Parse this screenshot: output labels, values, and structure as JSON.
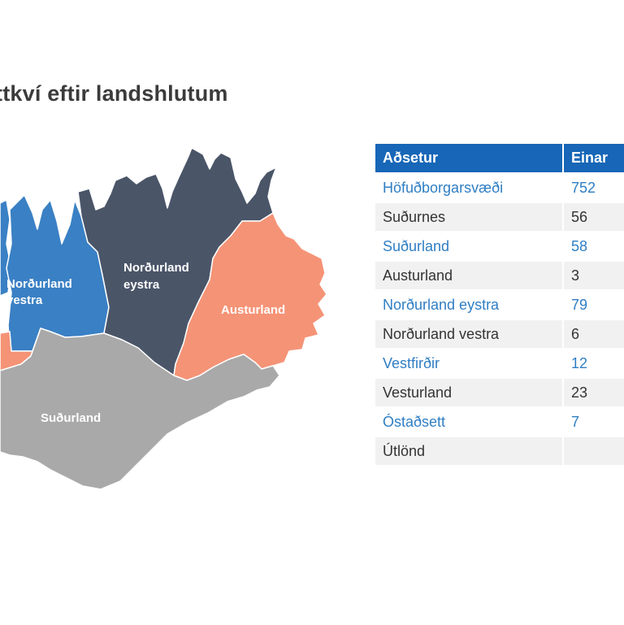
{
  "title": "ttkví eftir landshlutum",
  "colors": {
    "blue": "#3a80c4",
    "dark": "#4a5568",
    "orange": "#f59376",
    "gray": "#a9a9a9",
    "header": "#1766b7",
    "link": "#2f7ec4"
  },
  "map": {
    "regions": [
      {
        "id": "vestfirdir",
        "label": "",
        "color": "blue"
      },
      {
        "id": "nordurland-vestra",
        "label": [
          "Norðurland",
          "vestra"
        ],
        "color": "blue"
      },
      {
        "id": "nordurland-eystra",
        "label": [
          "Norðurland",
          "eystra"
        ],
        "color": "dark"
      },
      {
        "id": "austurland",
        "label": [
          "Austurland"
        ],
        "color": "orange"
      },
      {
        "id": "vesturland",
        "label": "",
        "color": "orange"
      },
      {
        "id": "sudurland",
        "label": [
          "Suðurland"
        ],
        "color": "gray"
      }
    ]
  },
  "table": {
    "headers": [
      "Aðsetur",
      "Einar"
    ],
    "rows": [
      {
        "name": "Höfuðborgarsvæði",
        "value": "752"
      },
      {
        "name": "Suðurnes",
        "value": "56"
      },
      {
        "name": "Suðurland",
        "value": "58"
      },
      {
        "name": "Austurland",
        "value": "3"
      },
      {
        "name": "Norðurland eystra",
        "value": "79"
      },
      {
        "name": "Norðurland vestra",
        "value": "6"
      },
      {
        "name": "Vestfirðir",
        "value": "12"
      },
      {
        "name": "Vesturland",
        "value": "23"
      },
      {
        "name": "Óstaðsett",
        "value": "7"
      },
      {
        "name": "Útlönd",
        "value": ""
      }
    ]
  }
}
